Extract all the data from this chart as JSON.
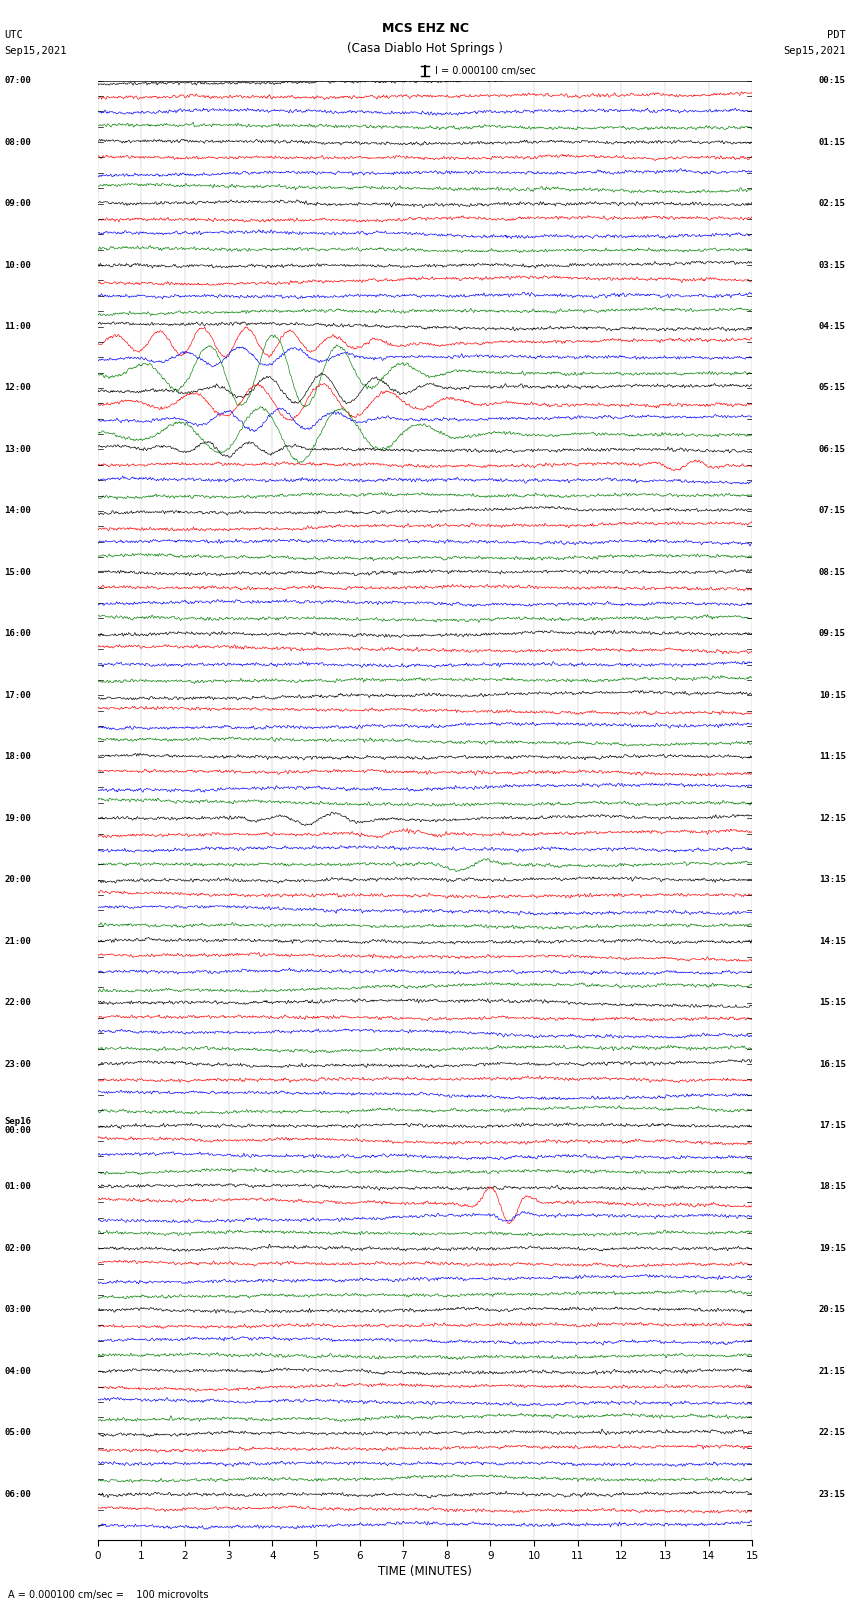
{
  "title_line1": "MCS EHZ NC",
  "title_line2": "(Casa Diablo Hot Springs )",
  "scale_label": "I = 0.000100 cm/sec",
  "left_header_line1": "UTC",
  "left_header_line2": "Sep15,2021",
  "right_header_line1": "PDT",
  "right_header_line2": "Sep15,2021",
  "bottom_label": "TIME (MINUTES)",
  "bottom_note": "A = 0.000100 cm/sec =    100 microvolts",
  "xlim": [
    0,
    15
  ],
  "xticks": [
    0,
    1,
    2,
    3,
    4,
    5,
    6,
    7,
    8,
    9,
    10,
    11,
    12,
    13,
    14,
    15
  ],
  "background_color": "#ffffff",
  "trace_colors": [
    "black",
    "red",
    "blue",
    "green"
  ],
  "figure_width": 8.5,
  "figure_height": 16.13,
  "dpi": 100,
  "left_times": [
    "07:00",
    "",
    "",
    "",
    "08:00",
    "",
    "",
    "",
    "09:00",
    "",
    "",
    "",
    "10:00",
    "",
    "",
    "",
    "11:00",
    "",
    "",
    "",
    "12:00",
    "",
    "",
    "",
    "13:00",
    "",
    "",
    "",
    "14:00",
    "",
    "",
    "",
    "15:00",
    "",
    "",
    "",
    "16:00",
    "",
    "",
    "",
    "17:00",
    "",
    "",
    "",
    "18:00",
    "",
    "",
    "",
    "19:00",
    "",
    "",
    "",
    "20:00",
    "",
    "",
    "",
    "21:00",
    "",
    "",
    "",
    "22:00",
    "",
    "",
    "",
    "23:00",
    "",
    "",
    "",
    "Sep16\n00:00",
    "",
    "",
    "",
    "01:00",
    "",
    "",
    "",
    "02:00",
    "",
    "",
    "",
    "03:00",
    "",
    "",
    "",
    "04:00",
    "",
    "",
    "",
    "05:00",
    "",
    "",
    "",
    "06:00",
    "",
    ""
  ],
  "right_times": [
    "00:15",
    "",
    "",
    "",
    "01:15",
    "",
    "",
    "",
    "02:15",
    "",
    "",
    "",
    "03:15",
    "",
    "",
    "",
    "04:15",
    "",
    "",
    "",
    "05:15",
    "",
    "",
    "",
    "06:15",
    "",
    "",
    "",
    "07:15",
    "",
    "",
    "",
    "08:15",
    "",
    "",
    "",
    "09:15",
    "",
    "",
    "",
    "10:15",
    "",
    "",
    "",
    "11:15",
    "",
    "",
    "",
    "12:15",
    "",
    "",
    "",
    "13:15",
    "",
    "",
    "",
    "14:15",
    "",
    "",
    "",
    "15:15",
    "",
    "",
    "",
    "16:15",
    "",
    "",
    "",
    "17:15",
    "",
    "",
    "",
    "18:15",
    "",
    "",
    "",
    "19:15",
    "",
    "",
    "",
    "20:15",
    "",
    "",
    "",
    "21:15",
    "",
    "",
    "",
    "22:15",
    "",
    "",
    "",
    "23:15",
    "",
    ""
  ],
  "noise_base": 0.12,
  "noise_seed": 1234
}
